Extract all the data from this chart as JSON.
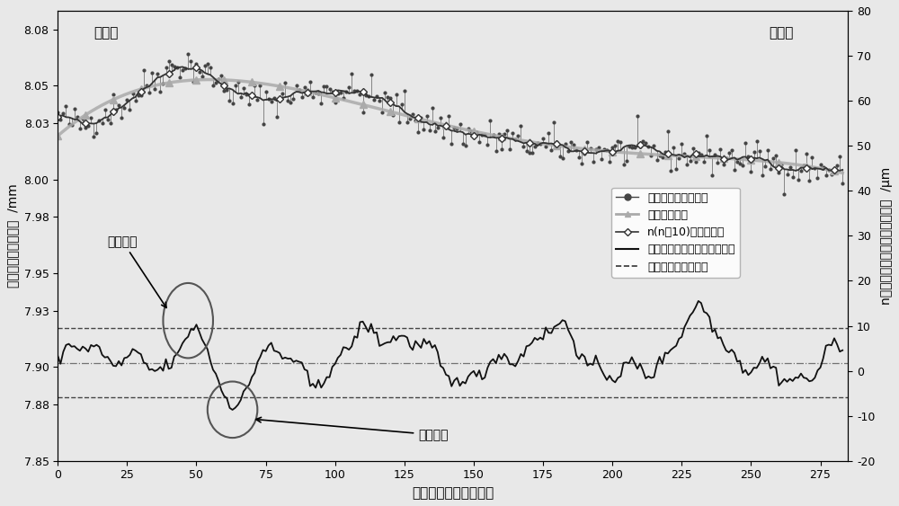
{
  "title": "",
  "xlabel": "板带宽度方向采样点数",
  "ylabel_left": "板带横截面厚度分布  /mm",
  "ylabel_right": "n移动平均线与四次曲线的差值  /μm",
  "xlim": [
    0,
    285
  ],
  "ylim_left": [
    7.85,
    8.09
  ],
  "ylim_right": [
    -20,
    80
  ],
  "xticks": [
    0,
    25,
    50,
    75,
    100,
    125,
    150,
    175,
    200,
    225,
    250,
    275
  ],
  "yticks_left": [
    7.85,
    7.88,
    7.9,
    7.93,
    7.95,
    7.98,
    8.0,
    8.03,
    8.05,
    8.08
  ],
  "yticks_right": [
    -20,
    -10,
    0,
    10,
    20,
    30,
    40,
    50,
    60,
    70,
    80
  ],
  "annotation_high": "局部高点",
  "annotation_low": "局部凹点",
  "label_drive": "驱动侧",
  "label_operate": "操作侧",
  "legend_labels": [
    "板带横截面厚度分布",
    "四次拟合曲线",
    "n(n＝10)移动平均线",
    "移动平均线与四次曲线的差值",
    "局部高（凹）点阈值"
  ],
  "threshold_upper": 7.921,
  "threshold_lower": 7.884,
  "zero_line": 7.902,
  "background_color": "#e8e8e8",
  "data_color": "#444444",
  "quartic_color": "#aaaaaa",
  "ma_color": "#333333",
  "diff_color": "#111111"
}
